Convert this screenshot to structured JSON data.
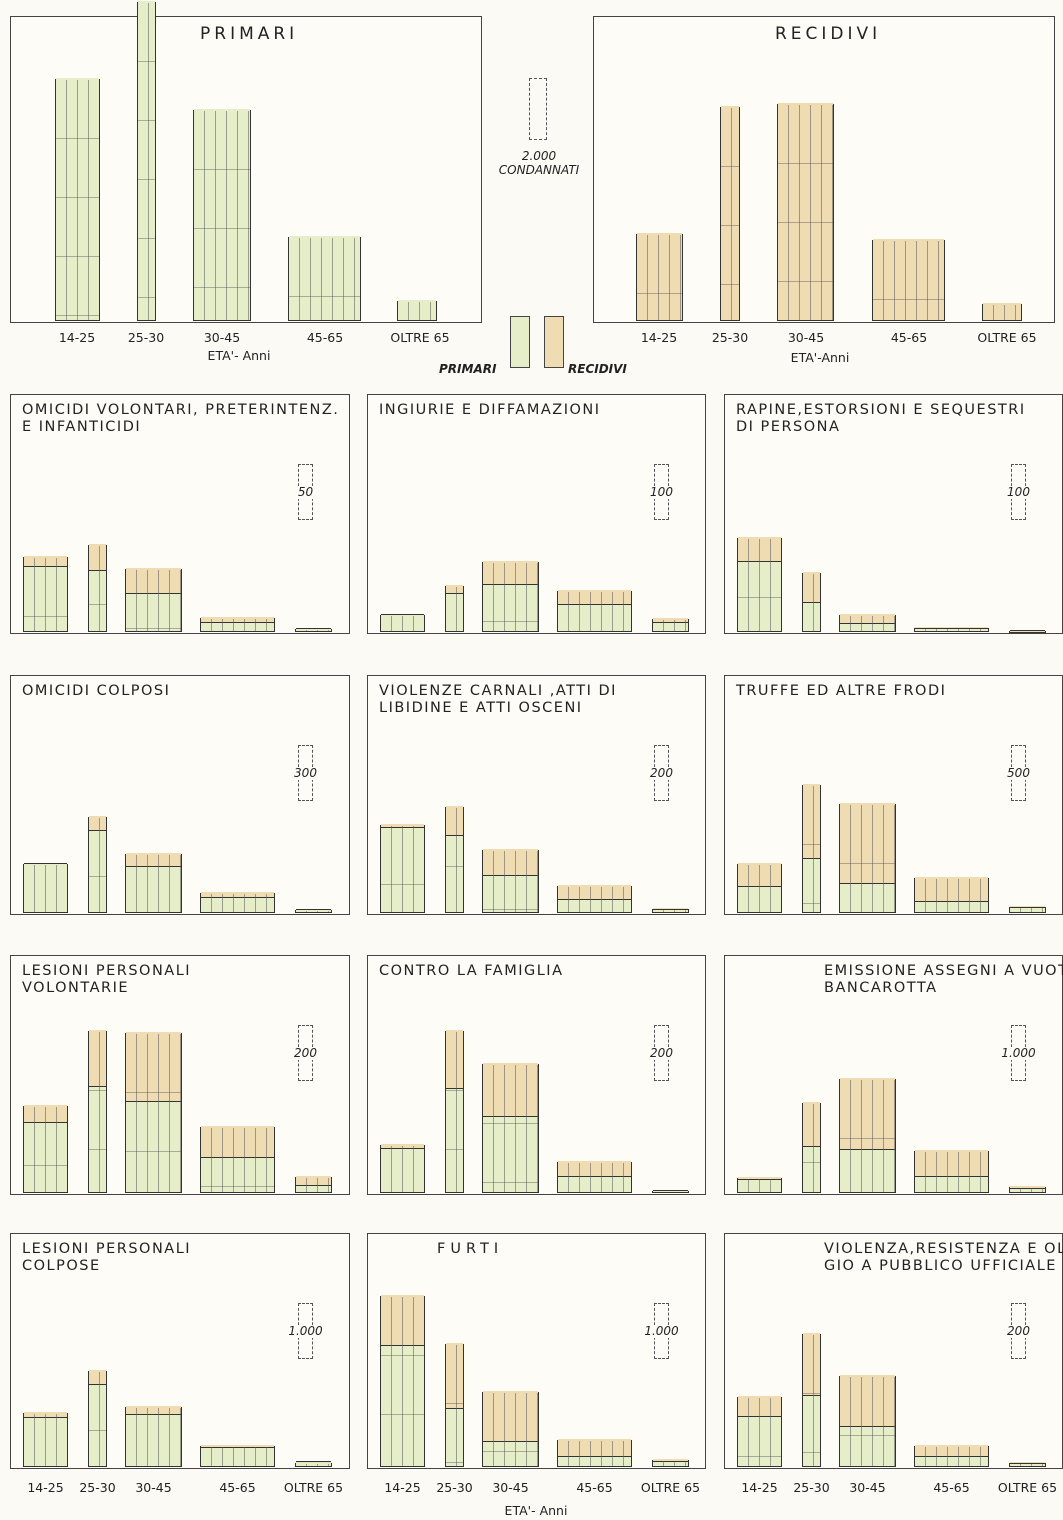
{
  "colors": {
    "primari": "#e6eec9",
    "recidivi": "#efdcb2",
    "ink": "#333333"
  },
  "age_classes": [
    "14-25",
    "25-30",
    "30-45",
    "45-65",
    "OLTRE 65"
  ],
  "legend": {
    "primari": "PRIMARI",
    "recidivi": "RECIDIVI"
  },
  "scale_main": {
    "value": "2.000",
    "unit": "CONDANNATI"
  },
  "top_axis_label": "ETA'- Anni",
  "top_axis_label_b": "ETA'-Anni",
  "bottom_axis_label": "ETA'- Anni",
  "chart_data": [
    {
      "type": "bar",
      "title": "PRIMARI",
      "categories": [
        "14-25",
        "25-30",
        "30-45",
        "45-65",
        "OLTRE 65"
      ],
      "series": [
        {
          "name": "PRIMARI",
          "values": [
            7800,
            10300,
            6800,
            2700,
            650
          ]
        }
      ]
    },
    {
      "type": "bar",
      "title": "RECIDIVI",
      "categories": [
        "14-25",
        "25-30",
        "30-45",
        "45-65",
        "OLTRE 65"
      ],
      "series": [
        {
          "name": "RECIDIVI",
          "values": [
            2800,
            6900,
            7000,
            2600,
            550
          ]
        }
      ]
    },
    {
      "type": "bar",
      "stacked": true,
      "title": "OMICIDI VOLONTARI, PRETERINTENZ.\nE INFANTICIDI",
      "scale": "50",
      "categories": [
        "14-25",
        "25-30",
        "30-45",
        "45-65",
        "OLTRE 65"
      ],
      "series": [
        {
          "name": "PRIMARI",
          "values": [
            107,
            100,
            62,
            14,
            4
          ]
        },
        {
          "name": "RECIDIVI",
          "values": [
            18,
            45,
            43,
            10,
            1
          ]
        }
      ]
    },
    {
      "type": "bar",
      "stacked": true,
      "title": "INGIURIE E DIFFAMAZIONI",
      "scale": "100",
      "categories": [
        "14-25",
        "25-30",
        "30-45",
        "45-65",
        "OLTRE 65"
      ],
      "series": [
        {
          "name": "PRIMARI",
          "values": [
            54,
            124,
            154,
            88,
            28
          ]
        },
        {
          "name": "RECIDIVI",
          "values": [
            4,
            28,
            80,
            48,
            16
          ]
        }
      ]
    },
    {
      "type": "bar",
      "stacked": true,
      "title": "RAPINE,ESTORSIONI E SEQUESTRI\nDI PERSONA",
      "scale": "100",
      "categories": [
        "14-25",
        "25-30",
        "30-45",
        "45-65",
        "OLTRE 65"
      ],
      "series": [
        {
          "name": "PRIMARI",
          "values": [
            230,
            92,
            22,
            8,
            3
          ]
        },
        {
          "name": "RECIDIVI",
          "values": [
            84,
            104,
            36,
            4,
            1
          ]
        }
      ]
    },
    {
      "type": "bar",
      "stacked": true,
      "title": "OMICIDI COLPOSI",
      "scale": "300",
      "categories": [
        "14-25",
        "25-30",
        "30-45",
        "45-65",
        "OLTRE 65"
      ],
      "series": [
        {
          "name": "PRIMARI",
          "values": [
            480,
            810,
            450,
            140,
            20
          ]
        },
        {
          "name": "RECIDIVI",
          "values": [
            15,
            150,
            140,
            60,
            10
          ]
        }
      ]
    },
    {
      "type": "bar",
      "stacked": true,
      "title": "VIOLENZE CARNALI ,ATTI DI\nLIBIDINE E ATTI OSCENI",
      "scale": "200",
      "categories": [
        "14-25",
        "25-30",
        "30-45",
        "45-65",
        "OLTRE 65"
      ],
      "series": [
        {
          "name": "PRIMARI",
          "values": [
            560,
            510,
            240,
            80,
            15
          ]
        },
        {
          "name": "RECIDIVI",
          "values": [
            30,
            200,
            180,
            100,
            15
          ]
        }
      ]
    },
    {
      "type": "bar",
      "stacked": true,
      "title": "TRUFFE ED ALTRE FRODI",
      "scale": "500",
      "categories": [
        "14-25",
        "25-30",
        "30-45",
        "45-65",
        "OLTRE 65"
      ],
      "series": [
        {
          "name": "PRIMARI",
          "values": [
            420,
            880,
            460,
            160,
            60
          ]
        },
        {
          "name": "RECIDIVI",
          "values": [
            390,
            1260,
            1360,
            430,
            40
          ]
        }
      ]
    },
    {
      "type": "bar",
      "stacked": true,
      "title": "LESIONI PERSONALI\nVOLONTARIE",
      "scale": "200",
      "categories": [
        "14-25",
        "25-30",
        "30-45",
        "45-65",
        "OLTRE 65"
      ],
      "series": [
        {
          "name": "PRIMARI",
          "values": [
            460,
            700,
            600,
            230,
            40
          ]
        },
        {
          "name": "RECIDIVI",
          "values": [
            120,
            380,
            470,
            210,
            65
          ]
        }
      ]
    },
    {
      "type": "bar",
      "stacked": true,
      "title": "CONTRO LA FAMIGLIA",
      "scale": "200",
      "categories": [
        "14-25",
        "25-30",
        "30-45",
        "45-65",
        "OLTRE 65"
      ],
      "series": [
        {
          "name": "PRIMARI",
          "values": [
            290,
            690,
            500,
            100,
            10
          ]
        },
        {
          "name": "RECIDIVI",
          "values": [
            30,
            390,
            360,
            110,
            5
          ]
        }
      ]
    },
    {
      "type": "bar",
      "stacked": true,
      "title": "EMISSIONE ASSEGNI A VUOTO E\nBANCAROTTA",
      "scale": "1.000",
      "categories": [
        "14-25",
        "25-30",
        "30-45",
        "45-65",
        "OLTRE 65"
      ],
      "series": [
        {
          "name": "PRIMARI",
          "values": [
            400,
            1500,
            1400,
            500,
            100
          ]
        },
        {
          "name": "RECIDIVI",
          "values": [
            100,
            1500,
            2400,
            900,
            100
          ]
        }
      ]
    },
    {
      "type": "bar",
      "stacked": true,
      "title": "LESIONI PERSONALI\nCOLPOSE",
      "scale": "1.000",
      "categories": [
        "14-25",
        "25-30",
        "30-45",
        "45-65",
        "OLTRE 65"
      ],
      "series": [
        {
          "name": "PRIMARI",
          "values": [
            1600,
            2700,
            1700,
            600,
            120
          ]
        },
        {
          "name": "RECIDIVI",
          "values": [
            200,
            500,
            300,
            100,
            30
          ]
        }
      ]
    },
    {
      "type": "bar",
      "stacked": true,
      "title": "FURTI",
      "scale": "1.000",
      "categories": [
        "14-25",
        "25-30",
        "30-45",
        "45-65",
        "OLTRE 65"
      ],
      "series": [
        {
          "name": "PRIMARI",
          "values": [
            4000,
            1900,
            800,
            300,
            120
          ]
        },
        {
          "name": "RECIDIVI",
          "values": [
            1700,
            2200,
            1700,
            600,
            130
          ]
        }
      ]
    },
    {
      "type": "bar",
      "stacked": true,
      "title": "VIOLENZA,RESISTENZA E OLTRAG\nGIO A PUBBLICO UFFICIALE",
      "scale": "200",
      "categories": [
        "14-25",
        "25-30",
        "30-45",
        "45-65",
        "OLTRE 65"
      ],
      "series": [
        {
          "name": "PRIMARI",
          "values": [
            330,
            470,
            260,
            60,
            12
          ]
        },
        {
          "name": "RECIDIVI",
          "values": [
            140,
            420,
            350,
            80,
            12
          ]
        }
      ]
    }
  ]
}
